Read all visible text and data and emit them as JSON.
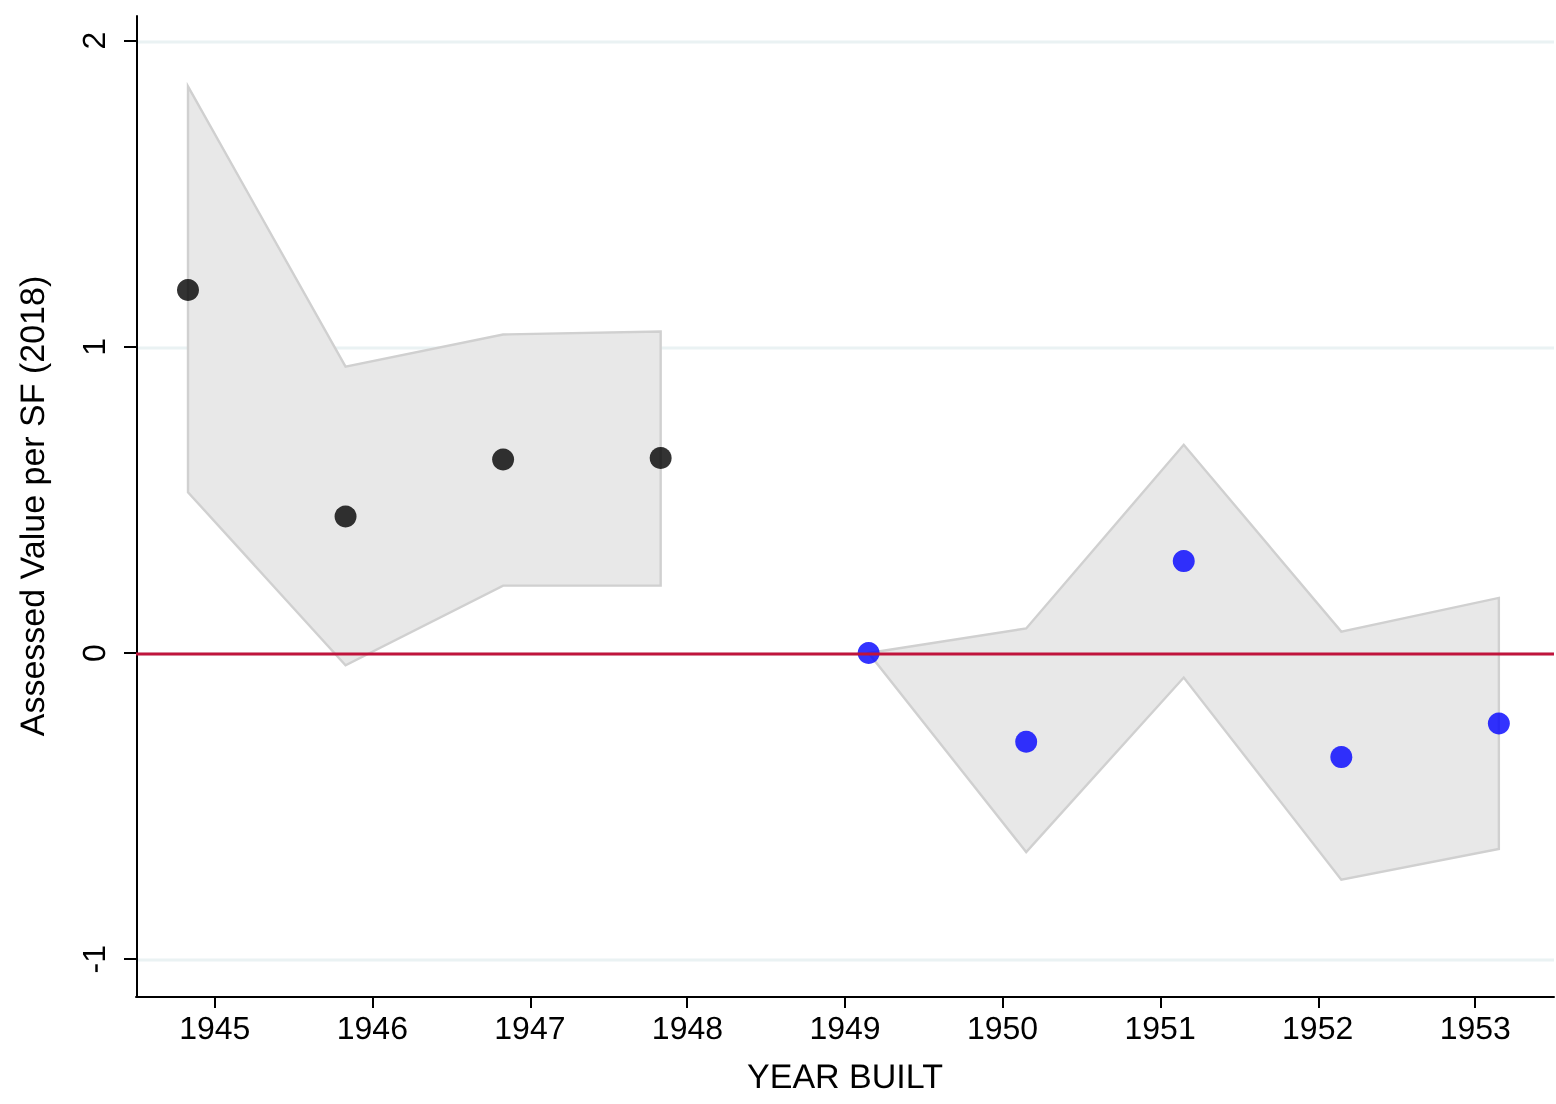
{
  "chart_data": {
    "type": "scatter",
    "xlabel": "YEAR BUILT",
    "ylabel": "Assessed Value per SF (2018)",
    "series": [
      {
        "color": "#000000",
        "x": [
          1944.83,
          1945.83,
          1946.83,
          1947.83
        ],
        "values": [
          1.185,
          0.446,
          0.632,
          0.637
        ],
        "lower": [
          0.525,
          -0.04,
          0.22,
          0.22
        ],
        "upper": [
          1.85,
          0.935,
          1.04,
          1.05
        ]
      },
      {
        "color": "#0000ff",
        "x": [
          1949.15,
          1950.15,
          1951.15,
          1952.15,
          1953.15
        ],
        "values": [
          0,
          -0.29,
          0.3,
          -0.34,
          -0.23
        ],
        "lower": [
          0,
          -0.65,
          -0.08,
          -0.74,
          -0.64
        ],
        "upper": [
          0,
          0.08,
          0.68,
          0.07,
          0.18
        ]
      }
    ],
    "xlim": [
      1944.5,
      1953.5
    ],
    "xticks": [
      1945,
      1946,
      1947,
      1948,
      1949,
      1950,
      1951,
      1952,
      1953
    ],
    "ylim": [
      -1.12,
      2.08
    ],
    "yticks": [
      -1,
      0,
      1,
      2
    ],
    "ref_lines": [
      {
        "axis": "y",
        "value": 0,
        "color": "#c0143c"
      }
    ],
    "grid": "y",
    "marker": "circle"
  }
}
